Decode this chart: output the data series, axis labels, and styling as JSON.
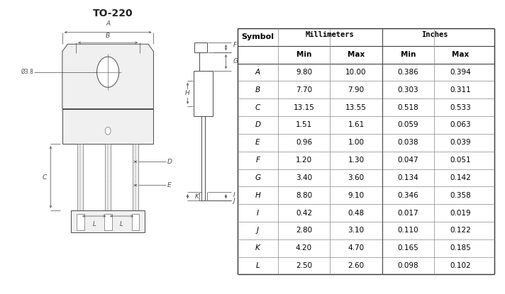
{
  "title": "TO-220",
  "bg_color": "#ffffff",
  "line_color": "#4a4a4a",
  "orange_color": "#cc8800",
  "table_data": [
    {
      "sym": "A",
      "mm_min": "9.80",
      "mm_max": "10.00",
      "in_min": "0.386",
      "in_max": "0.394",
      "hi_mm_min": false,
      "hi_mm_max": false,
      "hi_in_min": false,
      "hi_in_max": false
    },
    {
      "sym": "B",
      "mm_min": "7.70",
      "mm_max": "7.90",
      "in_min": "0.303",
      "in_max": "0.311",
      "hi_mm_min": false,
      "hi_mm_max": false,
      "hi_in_min": false,
      "hi_in_max": false
    },
    {
      "sym": "C",
      "mm_min": "13.15",
      "mm_max": "13.55",
      "in_min": "0.518",
      "in_max": "0.533",
      "hi_mm_min": false,
      "hi_mm_max": false,
      "hi_in_min": false,
      "hi_in_max": false
    },
    {
      "sym": "D",
      "mm_min": "1.51",
      "mm_max": "1.61",
      "in_min": "0.059",
      "in_max": "0.063",
      "hi_mm_min": false,
      "hi_mm_max": false,
      "hi_in_min": false,
      "hi_in_max": false
    },
    {
      "sym": "E",
      "mm_min": "0.96",
      "mm_max": "1.00",
      "in_min": "0.038",
      "in_max": "0.039",
      "hi_mm_min": false,
      "hi_mm_max": false,
      "hi_in_min": false,
      "hi_in_max": false
    },
    {
      "sym": "F",
      "mm_min": "1.20",
      "mm_max": "1.30",
      "in_min": "0.047",
      "in_max": "0.051",
      "hi_mm_min": false,
      "hi_mm_max": false,
      "hi_in_min": false,
      "hi_in_max": false
    },
    {
      "sym": "G",
      "mm_min": "3.40",
      "mm_max": "3.60",
      "in_min": "0.134",
      "in_max": "0.142",
      "hi_mm_min": false,
      "hi_mm_max": false,
      "hi_in_min": false,
      "hi_in_max": false
    },
    {
      "sym": "H",
      "mm_min": "8.80",
      "mm_max": "9.10",
      "in_min": "0.346",
      "in_max": "0.358",
      "hi_mm_min": false,
      "hi_mm_max": false,
      "hi_in_min": false,
      "hi_in_max": false
    },
    {
      "sym": "I",
      "mm_min": "0.42",
      "mm_max": "0.48",
      "in_min": "0.017",
      "in_max": "0.019",
      "hi_mm_min": false,
      "hi_mm_max": false,
      "hi_in_min": false,
      "hi_in_max": false
    },
    {
      "sym": "J",
      "mm_min": "2.80",
      "mm_max": "3.10",
      "in_min": "0.110",
      "in_max": "0.122",
      "hi_mm_min": false,
      "hi_mm_max": false,
      "hi_in_min": false,
      "hi_in_max": false
    },
    {
      "sym": "K",
      "mm_min": "4.20",
      "mm_max": "4.70",
      "in_min": "0.165",
      "in_max": "0.185",
      "hi_mm_min": false,
      "hi_mm_max": false,
      "hi_in_min": false,
      "hi_in_max": false
    },
    {
      "sym": "L",
      "mm_min": "2.50",
      "mm_max": "2.60",
      "in_min": "0.098",
      "in_max": "0.102",
      "hi_mm_min": false,
      "hi_mm_max": false,
      "hi_in_min": false,
      "hi_in_max": false
    }
  ]
}
